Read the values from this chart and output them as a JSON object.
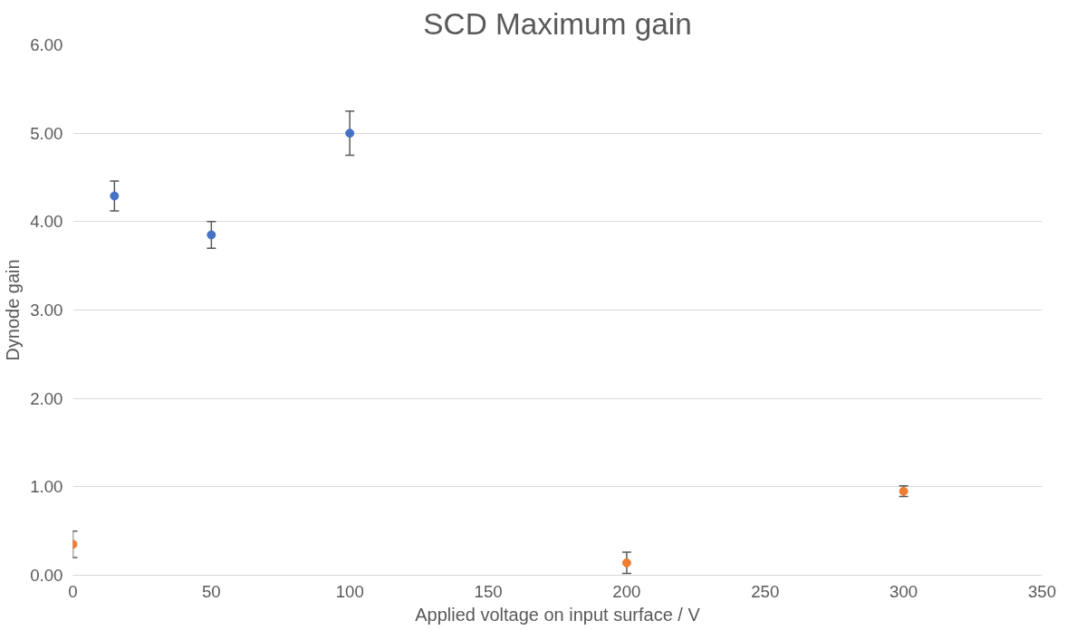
{
  "chart_data": {
    "type": "scatter",
    "title": "SCD Maximum gain",
    "xlabel": "Applied voltage on input surface / V",
    "ylabel": "Dynode gain",
    "series": [
      {
        "color": "#4472c4",
        "x": [
          15,
          50,
          100
        ],
        "values": [
          4.29,
          3.85,
          5.0
        ],
        "errors": [
          0.17,
          0.15,
          0.25
        ]
      },
      {
        "color": "#ed7d31",
        "x": [
          0,
          200,
          300
        ],
        "values": [
          0.35,
          0.14,
          0.95
        ],
        "errors": [
          0.15,
          0.12,
          0.06
        ]
      }
    ],
    "xlim": [
      0,
      350
    ],
    "xticks": [
      0,
      50,
      100,
      150,
      200,
      250,
      300,
      350
    ],
    "ylim": [
      0,
      6
    ],
    "yticks": [
      {
        "value": 0,
        "label": "0.00"
      },
      {
        "value": 1,
        "label": "1.00"
      },
      {
        "value": 2,
        "label": "2.00"
      },
      {
        "value": 3,
        "label": "3.00"
      },
      {
        "value": 4,
        "label": "4.00"
      },
      {
        "value": 5,
        "label": "5.00"
      },
      {
        "value": 6,
        "label": "6.00"
      }
    ],
    "grid": "y",
    "marker": "circle"
  }
}
